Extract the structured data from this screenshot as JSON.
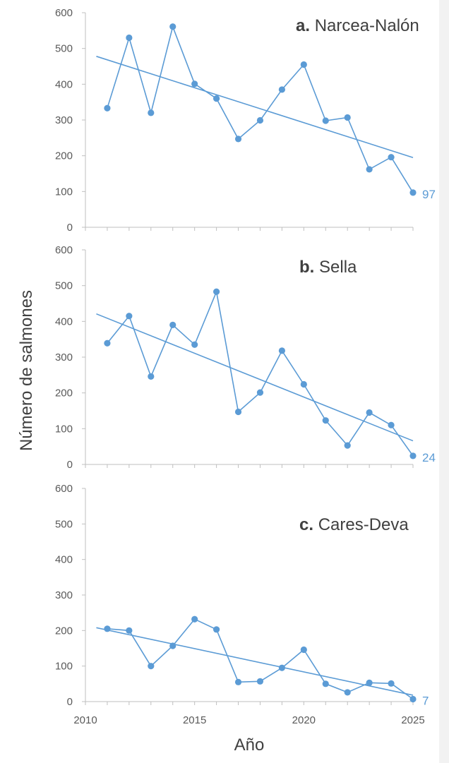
{
  "colors": {
    "series": "#5b9bd5",
    "axis": "#bfbfbf",
    "text": "#404040",
    "tick_text": "#595959"
  },
  "ylabel": "Número de salmones",
  "xlabel": "Año",
  "chart_data": [
    {
      "type": "line",
      "title_letter": "a.",
      "title": "Narcea-Nalón",
      "x": [
        2011,
        2012,
        2013,
        2014,
        2015,
        2016,
        2017,
        2018,
        2019,
        2020,
        2021,
        2022,
        2023,
        2024,
        2025
      ],
      "values": [
        333,
        530,
        320,
        561,
        401,
        360,
        247,
        299,
        385,
        455,
        298,
        307,
        162,
        196,
        97
      ],
      "end_label": "97",
      "trendline": {
        "start": [
          2010.5,
          478
        ],
        "end": [
          2025,
          195
        ]
      },
      "ylim": [
        0,
        600
      ],
      "yticks": [
        "0",
        "100",
        "200",
        "300",
        "400",
        "500",
        "600"
      ],
      "grid": false
    },
    {
      "type": "line",
      "title_letter": "b.",
      "title": "Sella",
      "x": [
        2011,
        2012,
        2013,
        2014,
        2015,
        2016,
        2017,
        2018,
        2019,
        2020,
        2021,
        2022,
        2023,
        2024,
        2025
      ],
      "values": [
        339,
        415,
        246,
        390,
        335,
        483,
        147,
        201,
        318,
        224,
        123,
        53,
        145,
        110,
        24
      ],
      "end_label": "24",
      "trendline": {
        "start": [
          2010.5,
          421
        ],
        "end": [
          2025,
          66
        ]
      },
      "ylim": [
        0,
        600
      ],
      "yticks": [
        "0",
        "100",
        "200",
        "300",
        "400",
        "500",
        "600"
      ],
      "grid": false
    },
    {
      "type": "line",
      "title_letter": "c.",
      "title": "Cares-Deva",
      "x": [
        2011,
        2012,
        2013,
        2014,
        2015,
        2016,
        2017,
        2018,
        2019,
        2020,
        2021,
        2022,
        2023,
        2024,
        2025
      ],
      "values": [
        205,
        200,
        100,
        157,
        232,
        203,
        55,
        57,
        95,
        146,
        50,
        26,
        53,
        51,
        7
      ],
      "end_label": "7",
      "trendline": {
        "start": [
          2010.5,
          208
        ],
        "end": [
          2025,
          18
        ]
      },
      "ylim": [
        0,
        600
      ],
      "yticks": [
        "0",
        "100",
        "200",
        "300",
        "400",
        "500",
        "600"
      ],
      "xlim": [
        2010,
        2025
      ],
      "xticks": [
        "2010",
        "2015",
        "2020",
        "2025"
      ],
      "grid": false
    }
  ]
}
